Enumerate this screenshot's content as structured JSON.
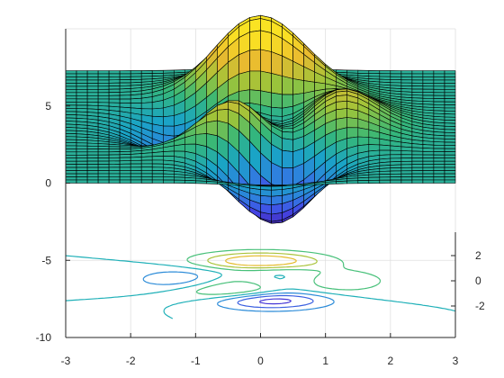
{
  "chart_data": {
    "type": "surface",
    "function": "peaks",
    "x": {
      "ticks": [
        -3,
        -2,
        -1,
        0,
        1,
        2,
        3
      ],
      "lim": [
        -3,
        3
      ]
    },
    "z_left": {
      "ticks": [
        -10,
        -5,
        0,
        5
      ],
      "lim": [
        -10,
        10
      ]
    },
    "y_right": {
      "ticks": [
        -2,
        0,
        2
      ],
      "lim": [
        -3,
        3
      ]
    },
    "contour_levels": [
      -6,
      -4,
      -2,
      0,
      2,
      4,
      6
    ],
    "colormap": [
      "#3e26a8",
      "#4546e8",
      "#2f7fdf",
      "#1aa4c6",
      "#35b779",
      "#9cc43a",
      "#e9ba30",
      "#f9de24",
      "#fae622"
    ],
    "contour_colors": [
      "#4636d6",
      "#3a5fe0",
      "#2b8bd8",
      "#1fb0b8",
      "#47c079",
      "#a9c33a",
      "#e4bc2e"
    ],
    "grid": true
  }
}
